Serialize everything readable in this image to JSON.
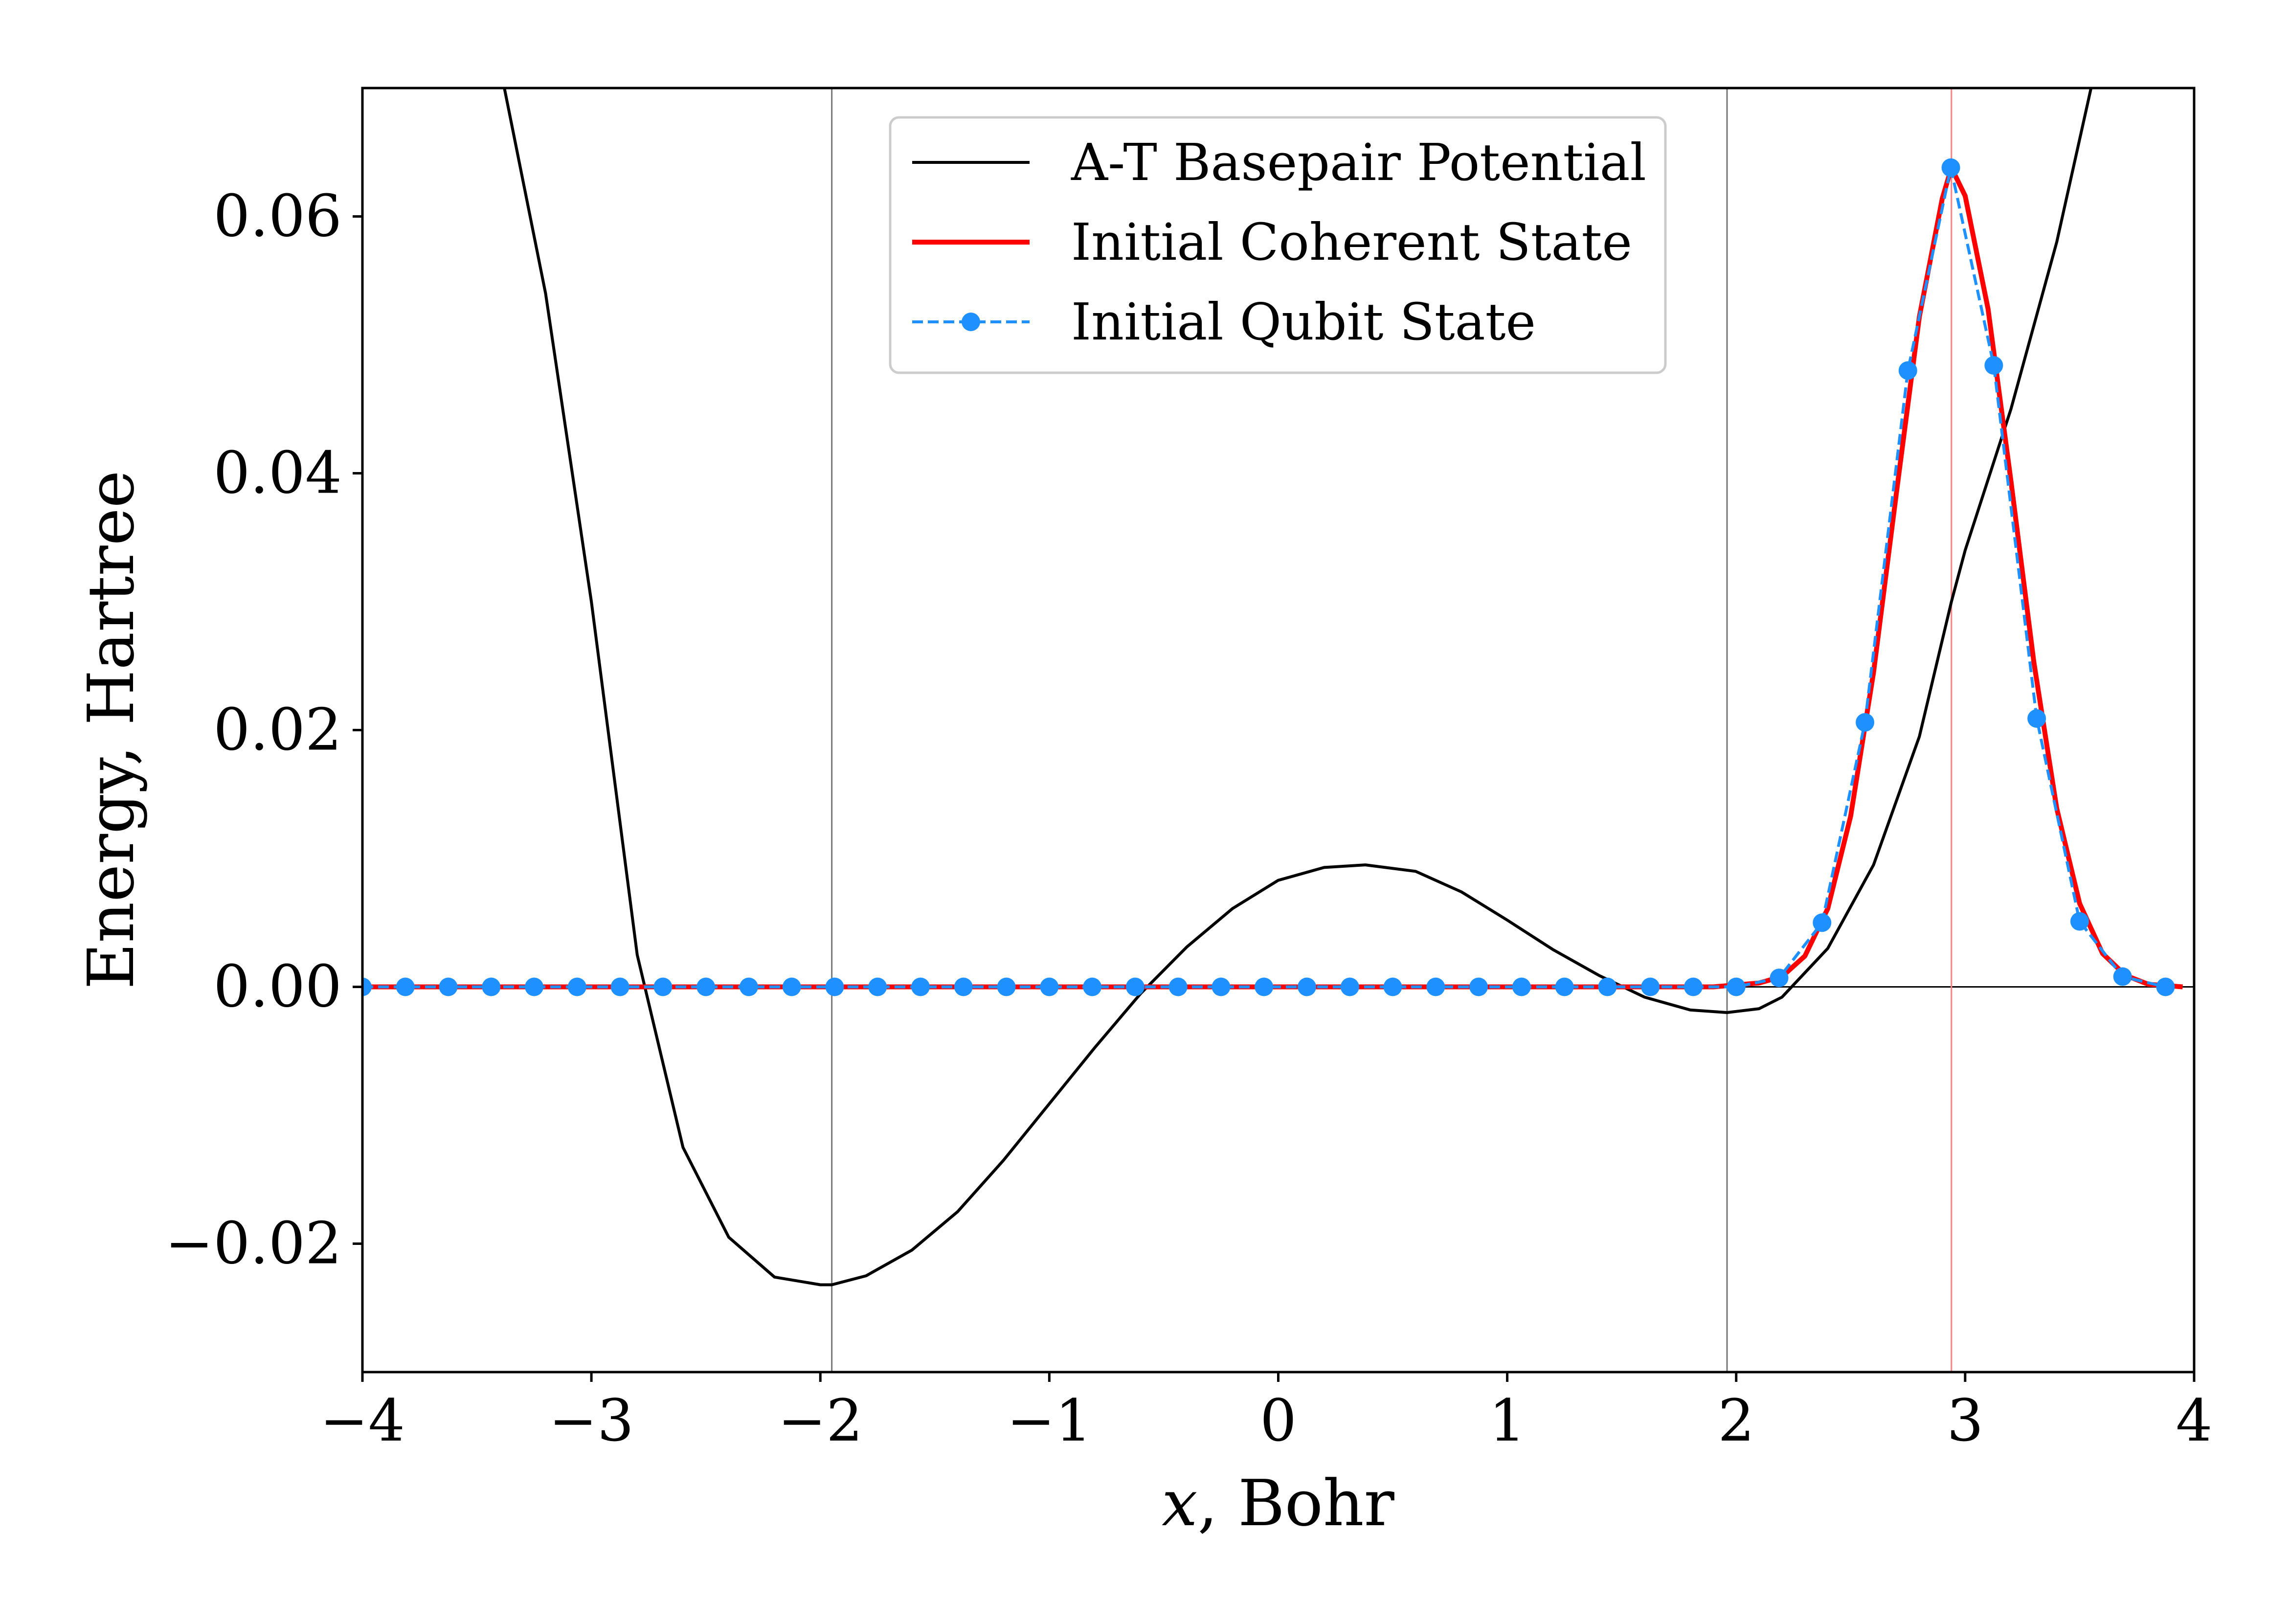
{
  "chart_data": {
    "type": "line",
    "xlabel_var": "x",
    "xlabel_rest": ", Bohr",
    "ylabel": "Energy, Hartree",
    "xlim": [
      -4,
      4
    ],
    "ylim": [
      -0.03,
      0.07
    ],
    "x_ticks": [
      -4,
      -3,
      -2,
      -1,
      0,
      1,
      2,
      3,
      4
    ],
    "x_tick_labels": [
      "−4",
      "−3",
      "−2",
      "−1",
      "0",
      "1",
      "2",
      "3",
      "4"
    ],
    "y_ticks": [
      -0.02,
      0.0,
      0.02,
      0.04,
      0.06
    ],
    "y_tick_labels": [
      "−0.02",
      "0.00",
      "0.02",
      "0.04",
      "0.06"
    ],
    "grid": false,
    "legend_position": "top-center",
    "reference_lines": {
      "horizontal": [
        {
          "y": 0.0,
          "color": "#000000"
        }
      ],
      "vertical": [
        {
          "x": -1.95,
          "color": "#777777"
        },
        {
          "x": 1.96,
          "color": "#777777"
        },
        {
          "x": 2.94,
          "color": "#ff8080"
        }
      ]
    },
    "series": [
      {
        "name": "A-T Basepair Potential",
        "color": "#000000",
        "style": "solid",
        "x": [
          -3.38,
          -3.2,
          -3.0,
          -2.8,
          -2.6,
          -2.4,
          -2.2,
          -2.0,
          -1.95,
          -1.8,
          -1.6,
          -1.4,
          -1.2,
          -1.0,
          -0.8,
          -0.6,
          -0.4,
          -0.2,
          0.0,
          0.2,
          0.38,
          0.6,
          0.8,
          1.0,
          1.2,
          1.4,
          1.6,
          1.8,
          1.96,
          2.1,
          2.2,
          2.4,
          2.6,
          2.8,
          2.94,
          3.0,
          3.2,
          3.4,
          3.55
        ],
        "y": [
          0.07,
          0.054,
          0.03,
          0.0025,
          -0.0125,
          -0.0195,
          -0.0226,
          -0.0232,
          -0.0232,
          -0.0225,
          -0.0205,
          -0.0175,
          -0.0135,
          -0.0091,
          -0.0047,
          -0.0005,
          0.0031,
          0.0061,
          0.0083,
          0.0093,
          0.0095,
          0.009,
          0.0074,
          0.0052,
          0.0029,
          0.0009,
          -0.0008,
          -0.0018,
          -0.002,
          -0.0017,
          -0.0008,
          0.003,
          0.0095,
          0.0195,
          0.03,
          0.034,
          0.045,
          0.058,
          0.07
        ]
      },
      {
        "name": "Initial Coherent State",
        "color": "#ff0000",
        "style": "solid",
        "x": [
          -4.0,
          1.9,
          2.1,
          2.2,
          2.3,
          2.4,
          2.5,
          2.6,
          2.7,
          2.8,
          2.9,
          2.94,
          3.0,
          3.1,
          3.2,
          3.3,
          3.4,
          3.5,
          3.6,
          3.7,
          3.8,
          3.95
        ],
        "y": [
          0.0,
          0.0,
          0.0003,
          0.0008,
          0.0024,
          0.0061,
          0.0133,
          0.0245,
          0.0385,
          0.0522,
          0.0614,
          0.0638,
          0.0616,
          0.0528,
          0.0394,
          0.0253,
          0.0139,
          0.0065,
          0.0026,
          0.0009,
          0.0002,
          0.0
        ]
      },
      {
        "name": "Initial Qubit State",
        "color": "#1e90ff",
        "style": "dashed-markers",
        "x": [
          -4.0,
          -3.8125,
          -3.625,
          -3.4375,
          -3.25,
          -3.0625,
          -2.875,
          -2.6875,
          -2.5,
          -2.3125,
          -2.125,
          -1.9375,
          -1.75,
          -1.5625,
          -1.375,
          -1.1875,
          -1.0,
          -0.8125,
          -0.625,
          -0.4375,
          -0.25,
          -0.0625,
          0.125,
          0.3125,
          0.5,
          0.6875,
          0.875,
          1.0625,
          1.25,
          1.4375,
          1.625,
          1.8125,
          2.0,
          2.1875,
          2.375,
          2.5625,
          2.75,
          2.9375,
          3.125,
          3.3125,
          3.5,
          3.6875,
          3.875
        ],
        "y": [
          0.0,
          0.0,
          0.0,
          0.0,
          0.0,
          0.0,
          0.0,
          0.0,
          0.0,
          0.0,
          0.0,
          0.0,
          0.0,
          0.0,
          0.0,
          0.0,
          0.0,
          0.0,
          0.0,
          0.0,
          0.0,
          0.0,
          0.0,
          0.0,
          0.0,
          0.0,
          0.0,
          0.0,
          0.0,
          0.0,
          0.0,
          0.0,
          0.0,
          0.0007,
          0.005,
          0.0206,
          0.048,
          0.0638,
          0.0484,
          0.0209,
          0.0051,
          0.0008,
          0.0
        ]
      }
    ]
  }
}
